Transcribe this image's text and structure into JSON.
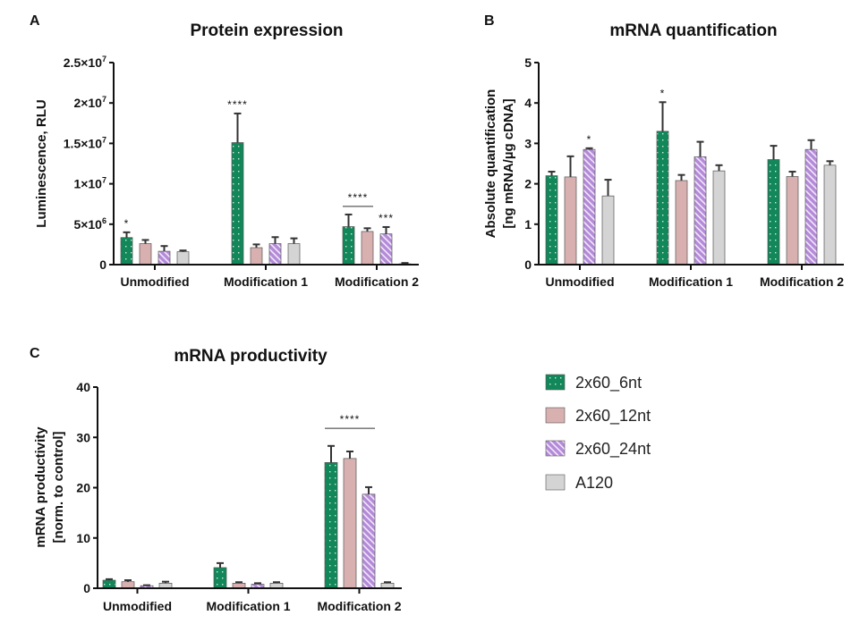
{
  "series_style": [
    {
      "name": "2x60_6nt",
      "fill": "#12875a",
      "pattern": "dots"
    },
    {
      "name": "2x60_12nt",
      "fill": "#d8b0b0",
      "pattern": "none"
    },
    {
      "name": "2x60_24nt",
      "fill": "#b48ad8",
      "pattern": "hatch"
    },
    {
      "name": "A120",
      "fill": "#d4d4d4",
      "pattern": "none"
    }
  ],
  "legend": {
    "items": [
      "2x60_6nt",
      "2x60_12nt",
      "2x60_24nt",
      "A120"
    ],
    "placement": "right of panel C"
  },
  "chart_data": [
    {
      "panel": "A",
      "type": "bar",
      "title": "Protein expression",
      "xlabel": "",
      "ylabel": "Luminescence, RLU",
      "ylim": [
        0,
        25000000
      ],
      "yticks": [
        0,
        5000000,
        10000000,
        15000000,
        20000000,
        25000000
      ],
      "ytick_labels": [
        {
          "base": "0",
          "exp": ""
        },
        {
          "base": "5×10",
          "exp": "6"
        },
        {
          "base": "1×10",
          "exp": "7"
        },
        {
          "base": "1.5×10",
          "exp": "7"
        },
        {
          "base": "2×10",
          "exp": "7"
        },
        {
          "base": "2.5×10",
          "exp": "7"
        }
      ],
      "categories": [
        "Unmodified",
        "Modification 1",
        "Modification 2"
      ],
      "series": [
        {
          "name": "2x60_6nt",
          "values": [
            3350000,
            15100000,
            4700000
          ],
          "error_top": [
            4000000,
            18700000,
            6200000
          ]
        },
        {
          "name": "2x60_12nt",
          "values": [
            2600000,
            2100000,
            4100000
          ],
          "error_top": [
            3050000,
            2500000,
            4500000
          ]
        },
        {
          "name": "2x60_24nt",
          "values": [
            1650000,
            2600000,
            3800000
          ],
          "error_top": [
            2300000,
            3400000,
            4650000
          ]
        },
        {
          "name": "A120",
          "values": [
            1600000,
            2600000,
            100000
          ],
          "error_top": [
            1750000,
            3250000,
            200000
          ]
        }
      ],
      "annotations": [
        {
          "text": "*",
          "category": 0,
          "series": 0,
          "type": "star"
        },
        {
          "text": "****",
          "category": 1,
          "series": 0,
          "type": "star"
        },
        {
          "text": "****",
          "category": 2,
          "series_span": [
            0,
            1
          ],
          "type": "bracket",
          "level": 7200000
        },
        {
          "text": "***",
          "category": 2,
          "series": 2,
          "type": "star"
        }
      ]
    },
    {
      "panel": "B",
      "type": "bar",
      "title": "mRNA quantification",
      "xlabel": "",
      "ylabel": [
        "Absolute quantification",
        "[ng mRNA/µg cDNA]"
      ],
      "ylim": [
        0,
        5
      ],
      "yticks": [
        0,
        1,
        2,
        3,
        4,
        5
      ],
      "ytick_labels": [
        {
          "base": "0",
          "exp": ""
        },
        {
          "base": "1",
          "exp": ""
        },
        {
          "base": "2",
          "exp": ""
        },
        {
          "base": "3",
          "exp": ""
        },
        {
          "base": "4",
          "exp": ""
        },
        {
          "base": "5",
          "exp": ""
        }
      ],
      "categories": [
        "Unmodified",
        "Modification 1",
        "Modification 2"
      ],
      "series": [
        {
          "name": "2x60_6nt",
          "values": [
            2.2,
            3.3,
            2.6
          ],
          "error_top": [
            2.3,
            4.02,
            2.94
          ]
        },
        {
          "name": "2x60_12nt",
          "values": [
            2.17,
            2.08,
            2.18
          ],
          "error_top": [
            2.68,
            2.22,
            2.3
          ]
        },
        {
          "name": "2x60_24nt",
          "values": [
            2.85,
            2.67,
            2.85
          ],
          "error_top": [
            2.88,
            3.04,
            3.08
          ]
        },
        {
          "name": "A120",
          "values": [
            1.7,
            2.32,
            2.46
          ],
          "error_top": [
            2.1,
            2.46,
            2.56
          ]
        }
      ],
      "annotations": [
        {
          "text": "*",
          "category": 0,
          "series": 2,
          "type": "star"
        },
        {
          "text": "*",
          "category": 1,
          "series": 0,
          "type": "star"
        }
      ]
    },
    {
      "panel": "C",
      "type": "bar",
      "title": "mRNA productivity",
      "xlabel": "",
      "ylabel": [
        "mRNA productivity",
        "[norm. to control]"
      ],
      "ylim": [
        0,
        40
      ],
      "yticks": [
        0,
        10,
        20,
        30,
        40
      ],
      "ytick_labels": [
        {
          "base": "0",
          "exp": ""
        },
        {
          "base": "10",
          "exp": ""
        },
        {
          "base": "20",
          "exp": ""
        },
        {
          "base": "30",
          "exp": ""
        },
        {
          "base": "40",
          "exp": ""
        }
      ],
      "categories": [
        "Unmodified",
        "Modification 1",
        "Modification 2"
      ],
      "series": [
        {
          "name": "2x60_6nt",
          "values": [
            1.6,
            4.1,
            25.0
          ],
          "error_top": [
            1.8,
            5.0,
            28.3
          ]
        },
        {
          "name": "2x60_12nt",
          "values": [
            1.3,
            1.0,
            25.8
          ],
          "error_top": [
            1.6,
            1.2,
            27.2
          ]
        },
        {
          "name": "2x60_24nt",
          "values": [
            0.5,
            0.8,
            18.7
          ],
          "error_top": [
            0.6,
            1.0,
            20.1
          ]
        },
        {
          "name": "A120",
          "values": [
            1.0,
            1.0,
            1.0
          ],
          "error_top": [
            1.3,
            1.2,
            1.2
          ]
        }
      ],
      "annotations": [
        {
          "text": "****",
          "category": 2,
          "series_span": [
            0,
            2
          ],
          "type": "bracket",
          "level": 31.8
        }
      ]
    }
  ],
  "panels": {
    "A": {
      "letter": "A"
    },
    "B": {
      "letter": "B"
    },
    "C": {
      "letter": "C"
    }
  }
}
